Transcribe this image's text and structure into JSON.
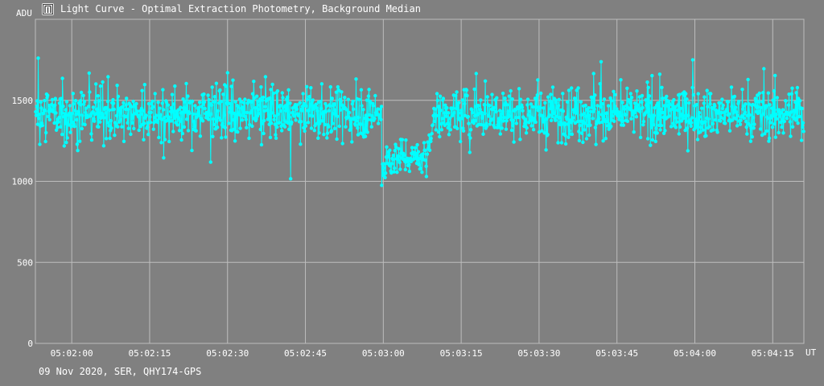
{
  "window": {
    "title": "Light Curve - Optimal Extraction Photometry, Background Median",
    "title_icon": "light-curve-app-icon"
  },
  "footer": {
    "caption": "09 Nov 2020, SER, QHY174-GPS"
  },
  "colors": {
    "background": "#808080",
    "grid": "#bdbdbd",
    "series": "#00ffff",
    "text": "#ffffff"
  },
  "chart_data": {
    "type": "scatter",
    "title": "Light Curve - Optimal Extraction Photometry, Background Median",
    "ylabel": "ADU",
    "xlabel": "UT",
    "ylim": [
      0,
      2000
    ],
    "xlim": [
      "05:01:53",
      "05:04:21"
    ],
    "grid": true,
    "connected_points": true,
    "yticks": [
      0,
      500,
      1000,
      1500
    ],
    "xticks": [
      "05:02:00",
      "05:02:15",
      "05:02:30",
      "05:02:45",
      "05:03:00",
      "05:03:15",
      "05:03:30",
      "05:03:45",
      "05:04:00",
      "05:04:15"
    ],
    "baseline_adu": 1420,
    "baseline_spread_adu": 90,
    "event": {
      "start": "05:02:59.8",
      "end": "05:03:08.4",
      "level_adu": 1145,
      "min_adu": 975
    },
    "notable_points": [
      {
        "t": "05:03:59.6",
        "y": 1750
      },
      {
        "t": "05:04:13.3",
        "y": 1695
      },
      {
        "t": "05:02:30.0",
        "y": 1670
      },
      {
        "t": "05:03:40.5",
        "y": 1665
      },
      {
        "t": "05:03:17.9",
        "y": 1665
      },
      {
        "t": "05:02:37.3",
        "y": 1645
      },
      {
        "t": "05:01:58.2",
        "y": 1635
      },
      {
        "t": "05:02:07.0",
        "y": 1645
      },
      {
        "t": "05:02:17.7",
        "y": 1145
      },
      {
        "t": "05:02:58.6",
        "y": 1410
      },
      {
        "t": "05:02:59.7",
        "y": 975
      },
      {
        "t": "05:03:08.3",
        "y": 1030
      },
      {
        "t": "05:03:09.2",
        "y": 1265
      }
    ]
  }
}
